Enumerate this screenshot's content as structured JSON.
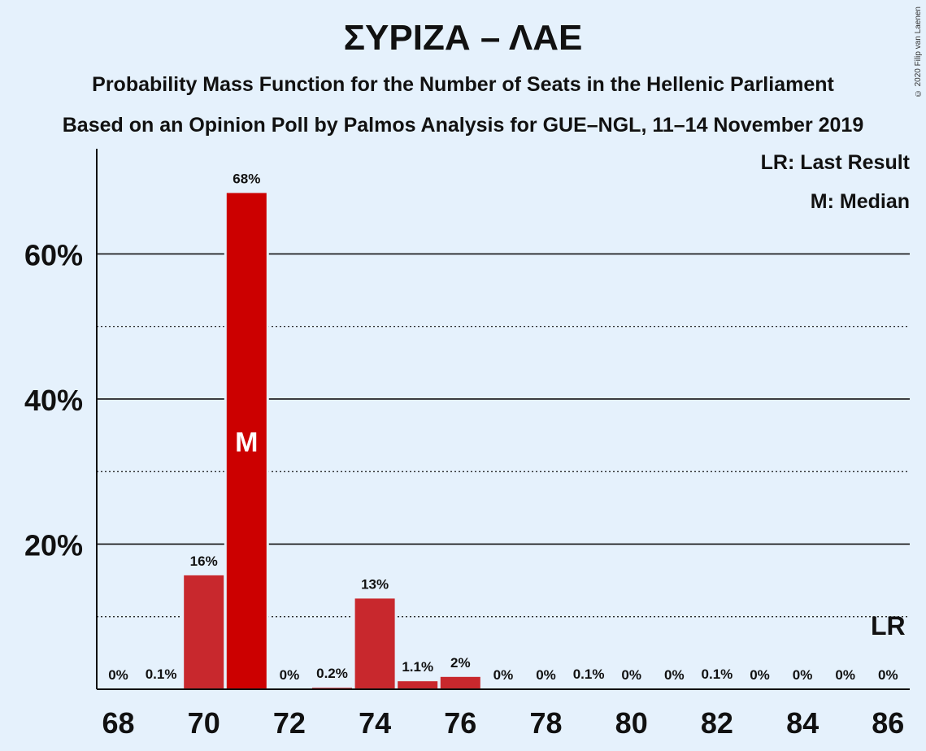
{
  "header": {
    "title": "ΣΥΡΙΖΑ – ΛΑΕ",
    "subtitle1": "Probability Mass Function for the Number of Seats in the Hellenic Parliament",
    "subtitle2": "Based on an Opinion Poll by Palmos Analysis for GUE–NGL, 11–14 November 2019",
    "copyright": "© 2020 Filip van Laenen"
  },
  "legend": {
    "last_result": "LR: Last Result",
    "median": "M: Median"
  },
  "chart_data": {
    "type": "bar",
    "x": [
      68,
      69,
      70,
      71,
      72,
      73,
      74,
      75,
      76,
      77,
      78,
      79,
      80,
      81,
      82,
      83,
      84,
      85,
      86
    ],
    "values": [
      0,
      0.1,
      15.7,
      68.4,
      0,
      0.2,
      12.5,
      1.1,
      1.7,
      0,
      0,
      0.1,
      0,
      0,
      0.1,
      0,
      0,
      0,
      0
    ],
    "data_labels": [
      "0%",
      "0.1%",
      "16%",
      "68%",
      "0%",
      "0.2%",
      "13%",
      "1.1%",
      "2%",
      "0%",
      "0%",
      "0.1%",
      "0%",
      "0%",
      "0.1%",
      "0%",
      "0%",
      "0%",
      "0%"
    ],
    "x_tick_labels": [
      "68",
      "70",
      "72",
      "74",
      "76",
      "78",
      "80",
      "82",
      "84",
      "86"
    ],
    "x_ticks": [
      68,
      70,
      72,
      74,
      76,
      78,
      80,
      82,
      84,
      86
    ],
    "y_ticks": [
      20,
      40,
      60
    ],
    "y_tick_labels": [
      "20%",
      "40%",
      "60%"
    ],
    "y_minor_gridlines": [
      10,
      30,
      50
    ],
    "ylim": [
      0,
      74.5
    ],
    "median_seat": 71,
    "median_marker": "M",
    "last_result_seat": 86,
    "last_result_marker": "LR",
    "colors": {
      "bar": "#c8282d",
      "median_bar": "#cc0000",
      "background": "#e5f1fc"
    }
  }
}
